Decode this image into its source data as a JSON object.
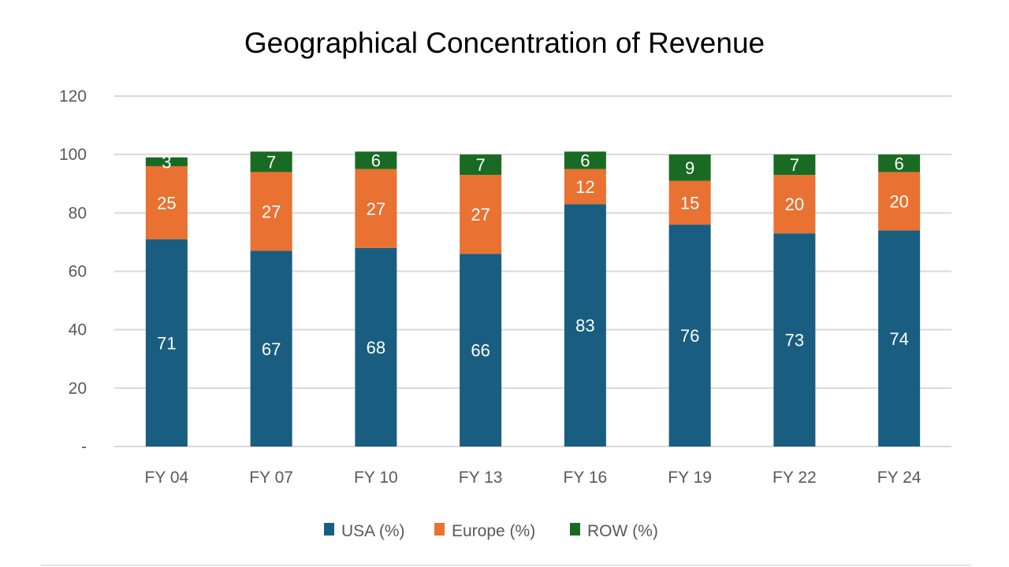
{
  "chart_data": {
    "type": "bar",
    "stacked": true,
    "title": "Geographical Concentration of Revenue",
    "xlabel": "",
    "ylabel": "",
    "categories": [
      "FY 04",
      "FY 07",
      "FY 10",
      "FY 13",
      "FY 16",
      "FY 19",
      "FY 22",
      "FY 24"
    ],
    "series": [
      {
        "name": "USA (%)",
        "color": "#195e80",
        "values": [
          71,
          67,
          68,
          66,
          83,
          76,
          73,
          74
        ]
      },
      {
        "name": "Europe (%)",
        "color": "#e97132",
        "values": [
          25,
          27,
          27,
          27,
          12,
          15,
          20,
          20
        ]
      },
      {
        "name": "ROW (%)",
        "color": "#196b24",
        "values": [
          3,
          7,
          6,
          7,
          6,
          9,
          7,
          6
        ]
      }
    ],
    "ylim": [
      0,
      120
    ],
    "yticks": [
      "-",
      "20",
      "40",
      "60",
      "80",
      "100",
      "120"
    ],
    "grid": true,
    "legend": "bottom",
    "data_labels": true
  }
}
